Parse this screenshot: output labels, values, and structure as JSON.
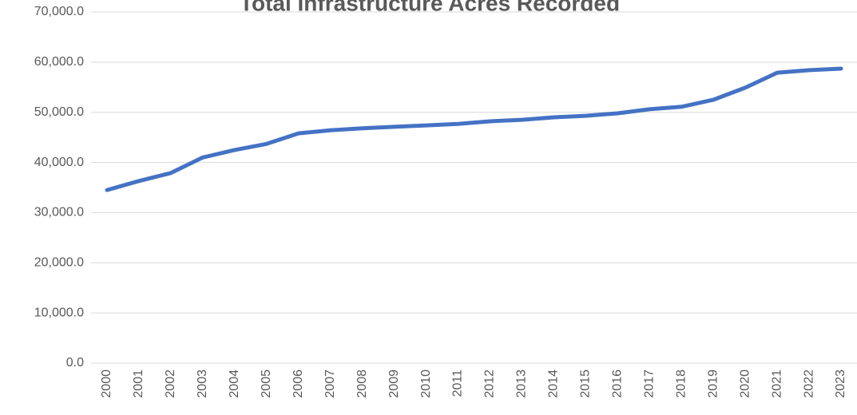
{
  "chart_data": {
    "type": "line",
    "title": "Total Infrastructure Acres Recorded",
    "categories": [
      "2000",
      "2001",
      "2002",
      "2003",
      "2004",
      "2005",
      "2006",
      "2007",
      "2008",
      "2009",
      "2010",
      "2011",
      "2012",
      "2013",
      "2014",
      "2015",
      "2016",
      "2017",
      "2018",
      "2019",
      "2020",
      "2021",
      "2022",
      "2023"
    ],
    "values": [
      34500,
      36300,
      37900,
      41000,
      42500,
      43700,
      45800,
      46400,
      46800,
      47100,
      47400,
      47700,
      48200,
      48500,
      49000,
      49300,
      49800,
      50600,
      51100,
      52500,
      54900,
      57900,
      58400,
      58700
    ],
    "color": "#4472c4",
    "ylim": [
      0,
      70000
    ],
    "yticks": [
      {
        "value": 0,
        "label": "0.0"
      },
      {
        "value": 10000,
        "label": "10,000.0"
      },
      {
        "value": 20000,
        "label": "20,000.0"
      },
      {
        "value": 30000,
        "label": "30,000.0"
      },
      {
        "value": 40000,
        "label": "40,000.0"
      },
      {
        "value": 50000,
        "label": "50,000.0"
      },
      {
        "value": 60000,
        "label": "60,000.0"
      },
      {
        "value": 70000,
        "label": "70,000.0"
      }
    ],
    "grid": true
  }
}
